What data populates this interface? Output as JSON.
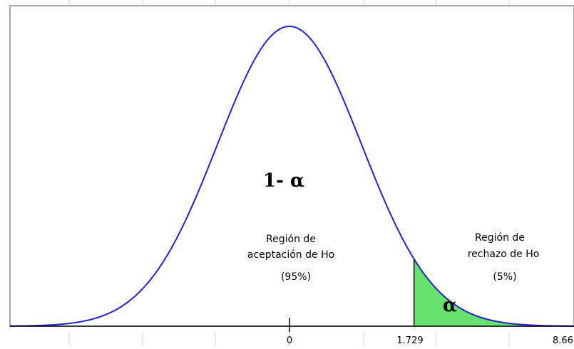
{
  "chart_data": {
    "type": "area",
    "distribution": "normal",
    "curve_color": "#2222cc",
    "rejection_fill": "#66e26e",
    "critical_value": 1.729,
    "xlim": [
      -3.3,
      3.3
    ],
    "tick_labels": [
      "0",
      "1.729",
      "8.66"
    ],
    "acceptance_area_percent": 95,
    "rejection_area_percent": 5,
    "annotations": {
      "one_minus_alpha": "1- α",
      "alpha": "α",
      "acceptance_line1": "Región de",
      "acceptance_line2": "aceptación de Ho",
      "acceptance_pct": "(95%)",
      "rejection_line1": "Región de",
      "rejection_line2": "rechazo de Ho",
      "rejection_pct": "(5%)"
    }
  }
}
